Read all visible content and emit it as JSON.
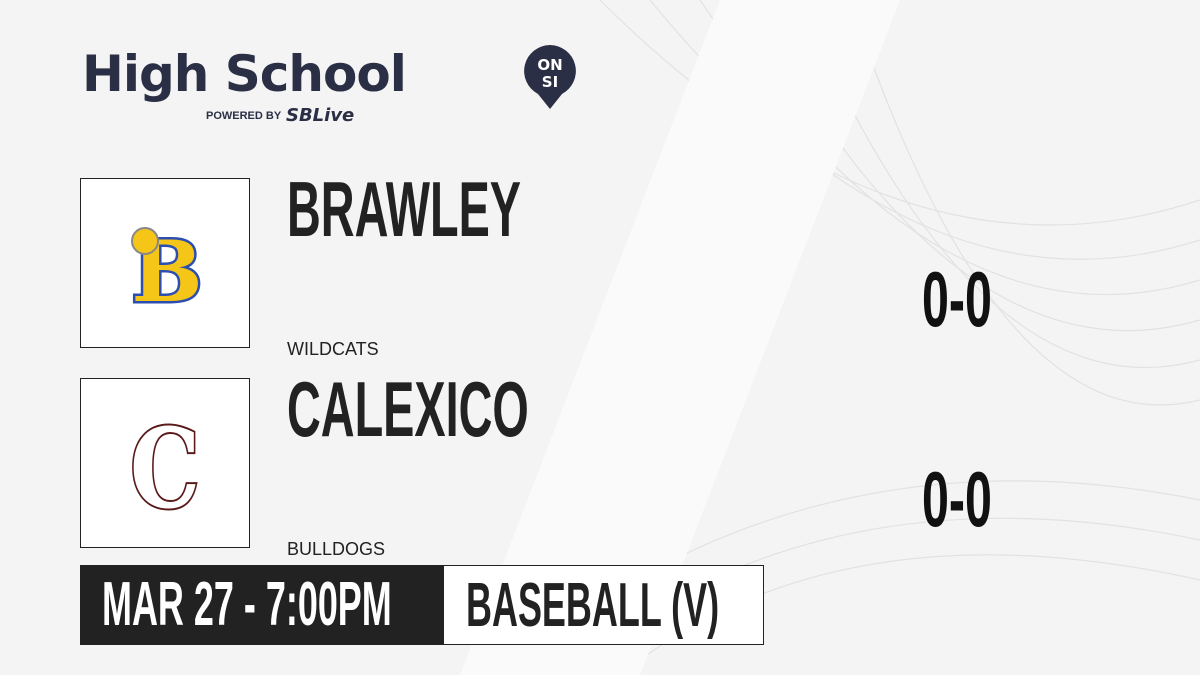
{
  "brand": {
    "title": "High School",
    "badge_top": "ON",
    "badge_bottom": "SI",
    "powered_by": "POWERED BY",
    "partner_a": "S",
    "partner_b": "SBLive"
  },
  "teams": [
    {
      "name": "BRAWLEY",
      "mascot": "WILDCATS",
      "score": "0-0",
      "logo_letter": "B",
      "logo_color": "#f5c518",
      "logo_outline": "#2b4eb0"
    },
    {
      "name": "CALEXICO",
      "mascot": "BULLDOGS",
      "score": "0-0",
      "logo_letter": "C",
      "logo_color": "#ffffff",
      "logo_outline": "#5a1a1a"
    }
  ],
  "game": {
    "datetime": "MAR 27 - 7:00PM",
    "sport": "BASEBALL (V)"
  }
}
